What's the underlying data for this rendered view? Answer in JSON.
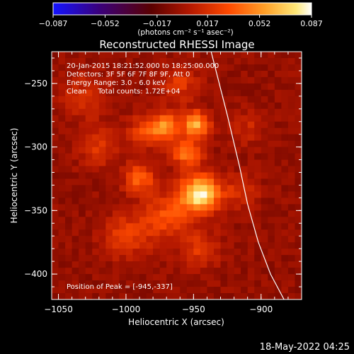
{
  "chart_data": {
    "type": "heatmap",
    "title": "Reconstructed RHESSI Image",
    "xlabel": "Heliocentric X (arcsec)",
    "ylabel": "Heliocentric Y (arcsec)",
    "xlim": [
      -1055,
      -870
    ],
    "ylim": [
      -420,
      -225
    ],
    "x_ticks": [
      -1050,
      -1000,
      -950,
      -900
    ],
    "y_ticks": [
      -250,
      -300,
      -350,
      -400
    ],
    "x_tick_labels": [
      "−1050",
      "−1000",
      "−950",
      "−900"
    ],
    "y_tick_labels": [
      "−250",
      "−300",
      "−350",
      "−400"
    ],
    "colorbar": {
      "range": [
        -0.087,
        0.087
      ],
      "ticks": [
        -0.087,
        -0.052,
        -0.017,
        0.017,
        0.052,
        0.087
      ],
      "tick_labels": [
        "−0.087",
        "−0.052",
        "−0.017",
        "0.017",
        "0.052",
        "0.087"
      ],
      "unit_label": "(photons cm⁻² s⁻¹ asec⁻²)",
      "colormap": [
        "#1414ff",
        "#3a007a",
        "#5a0000",
        "#b41800",
        "#ff4a00",
        "#ffa028",
        "#ffe878",
        "#ffffff"
      ]
    },
    "annotations": [
      "20-Jan-2015 18:21:52.000 to 18:25:00.000",
      "Detectors: 3F 5F 6F 7F 8F 9F, Att 0",
      "Energy Range: 3.0 - 6.0 keV",
      "Clean     Total counts: 1.72E+04"
    ],
    "peak_label": "Position of Peak = [-945,-337]",
    "peak": [
      -945,
      -337
    ],
    "sources": [
      {
        "x": -945,
        "y": -337,
        "peak": 0.087,
        "sigma": 10
      },
      {
        "x": -948,
        "y": -282,
        "peak": 0.064,
        "sigma": 7
      },
      {
        "x": -970,
        "y": -283,
        "peak": 0.052,
        "sigma": 7
      },
      {
        "x": -955,
        "y": -305,
        "peak": 0.046,
        "sigma": 8
      },
      {
        "x": -990,
        "y": -325,
        "peak": 0.04,
        "sigma": 8
      },
      {
        "x": -985,
        "y": -288,
        "peak": 0.034,
        "sigma": 9
      },
      {
        "x": -970,
        "y": -355,
        "peak": 0.034,
        "sigma": 13
      },
      {
        "x": -1000,
        "y": -370,
        "peak": 0.028,
        "sigma": 12
      },
      {
        "x": -1020,
        "y": -300,
        "peak": 0.023,
        "sigma": 11
      },
      {
        "x": -1030,
        "y": -260,
        "peak": 0.02,
        "sigma": 12
      },
      {
        "x": -960,
        "y": -250,
        "peak": 0.024,
        "sigma": 10
      },
      {
        "x": -945,
        "y": -380,
        "peak": 0.024,
        "sigma": 10
      },
      {
        "x": -915,
        "y": -335,
        "peak": 0.022,
        "sigma": 9
      },
      {
        "x": -910,
        "y": -285,
        "peak": 0.016,
        "sigma": 9
      }
    ],
    "background": -0.004,
    "limb": [
      [
        -937,
        -225
      ],
      [
        -925,
        -275
      ],
      [
        -916,
        -315
      ],
      [
        -910,
        -345
      ],
      [
        -902,
        -375
      ],
      [
        -893,
        -400
      ],
      [
        -883,
        -420
      ]
    ],
    "footer_date": "18-May-2022 04:25"
  }
}
